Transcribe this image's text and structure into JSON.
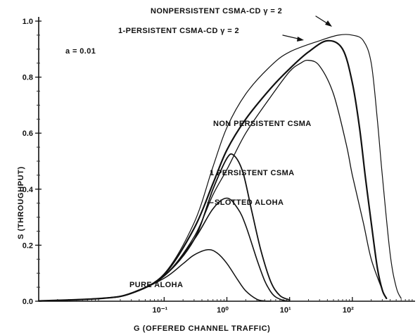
{
  "chart_data": {
    "type": "line",
    "xlabel": "G (OFFERED CHANNEL TRAFFIC)",
    "ylabel": "S (THROUGHPUT)",
    "x_scale": "log",
    "xlim": [
      0.001,
      1000
    ],
    "ylim": [
      0,
      1.0
    ],
    "x_ticks": [
      {
        "value": 0.1,
        "label": "10⁻¹"
      },
      {
        "value": 1,
        "label": "10⁰"
      },
      {
        "value": 10,
        "label": "10¹"
      },
      {
        "value": 100,
        "label": "10²"
      }
    ],
    "y_ticks": [
      {
        "value": 0,
        "label": "0.0"
      },
      {
        "value": 0.2,
        "label": "0.2"
      },
      {
        "value": 0.4,
        "label": "0.4"
      },
      {
        "value": 0.6,
        "label": "0.6"
      },
      {
        "value": 0.8,
        "label": "0.8"
      },
      {
        "value": 1.0,
        "label": "1.0"
      }
    ],
    "annotation": "a = 0.01",
    "grid": false,
    "series": [
      {
        "name": "NONPERSISTENT CSMA-CD γ = 2",
        "x": [
          0.001,
          0.01,
          0.03,
          0.1,
          0.3,
          0.6,
          1,
          2,
          5,
          10,
          30,
          60,
          100,
          150,
          200,
          250,
          300,
          400,
          500,
          600
        ],
        "y": [
          0.001,
          0.01,
          0.029,
          0.098,
          0.28,
          0.48,
          0.62,
          0.74,
          0.84,
          0.89,
          0.93,
          0.95,
          0.95,
          0.93,
          0.85,
          0.65,
          0.45,
          0.17,
          0.05,
          0.01
        ]
      },
      {
        "name": "1-PERSISTENT CSMA-CD γ = 2",
        "x": [
          0.001,
          0.01,
          0.03,
          0.1,
          0.3,
          0.6,
          1,
          2,
          5,
          10,
          20,
          40,
          70,
          100,
          130,
          160,
          200,
          250,
          300,
          350
        ],
        "y": [
          0.001,
          0.01,
          0.029,
          0.095,
          0.26,
          0.42,
          0.54,
          0.65,
          0.76,
          0.83,
          0.89,
          0.93,
          0.9,
          0.78,
          0.62,
          0.45,
          0.28,
          0.12,
          0.04,
          0.01
        ]
      },
      {
        "name": "NON PERSISTENT CSMA",
        "x": [
          0.001,
          0.01,
          0.03,
          0.1,
          0.3,
          0.6,
          1,
          2,
          5,
          10,
          15,
          20,
          30,
          50,
          80,
          100,
          150,
          200,
          300
        ],
        "y": [
          0.001,
          0.01,
          0.029,
          0.09,
          0.23,
          0.38,
          0.47,
          0.6,
          0.73,
          0.82,
          0.85,
          0.86,
          0.84,
          0.74,
          0.56,
          0.45,
          0.28,
          0.15,
          0.04
        ]
      },
      {
        "name": "1 PERSISTENT CSMA",
        "x": [
          0.001,
          0.01,
          0.03,
          0.1,
          0.3,
          0.6,
          1,
          1.3,
          1.8,
          2.5,
          3.5,
          5,
          7,
          10
        ],
        "y": [
          0.001,
          0.01,
          0.028,
          0.09,
          0.22,
          0.4,
          0.51,
          0.52,
          0.46,
          0.32,
          0.18,
          0.07,
          0.02,
          0.005
        ]
      },
      {
        "name": "SLOTTED ALOHA",
        "x": [
          0.001,
          0.01,
          0.03,
          0.1,
          0.3,
          0.6,
          1,
          1.5,
          2,
          3,
          4,
          5,
          6,
          8,
          10
        ],
        "y": [
          0.001,
          0.01,
          0.029,
          0.09,
          0.22,
          0.33,
          0.368,
          0.33,
          0.27,
          0.15,
          0.073,
          0.034,
          0.015,
          0.003,
          0.0005
        ]
      },
      {
        "name": "PURE ALOHA",
        "x": [
          0.001,
          0.01,
          0.03,
          0.1,
          0.2,
          0.3,
          0.5,
          0.7,
          1,
          1.5,
          2,
          3,
          4,
          5
        ],
        "y": [
          0.001,
          0.01,
          0.028,
          0.082,
          0.134,
          0.165,
          0.184,
          0.172,
          0.135,
          0.075,
          0.037,
          0.007,
          0.001,
          0.0002
        ]
      }
    ],
    "labels": {
      "csma_cd_np": "NONPERSISTENT CSMA-CD  γ = 2",
      "csma_cd_1p": "1-PERSISTENT CSMA-CD  γ = 2",
      "np_csma": "NON PERSISTENT CSMA",
      "p1_csma": "1 PERSISTENT CSMA",
      "slotted": "SLOTTED ALOHA",
      "pure": "PURE ALOHA"
    }
  }
}
